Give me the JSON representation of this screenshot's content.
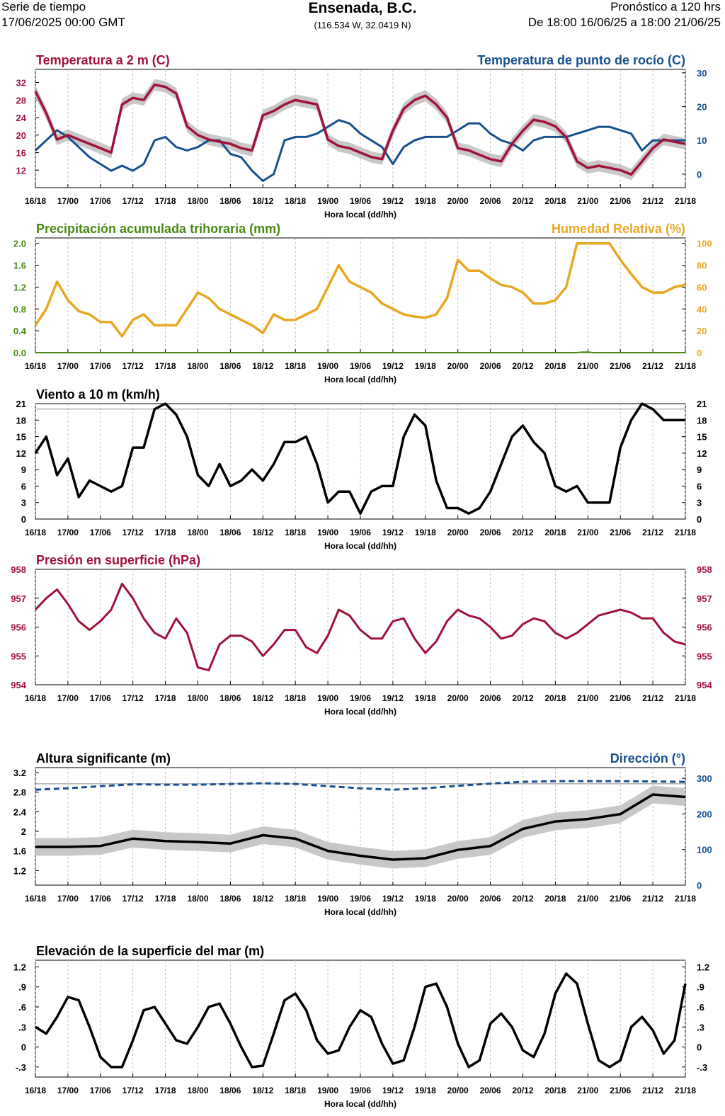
{
  "header": {
    "left_line1": "Serie de tiempo",
    "left_line2": "17/06/2025 00:00 GMT",
    "center_title": "Ensenada, B.C.",
    "center_coords": "(116.534 W, 32.0419 N)",
    "right_line1": "Pronóstico a 120 hrs",
    "right_line2": "De 18:00 16/06/25 a 18:00 21/06/25"
  },
  "x_axis": {
    "label": "Hora local (dd/hh)",
    "ticks": [
      "16/18",
      "17/00",
      "17/06",
      "17/12",
      "17/18",
      "18/00",
      "18/06",
      "18/12",
      "18/18",
      "19/00",
      "19/06",
      "19/12",
      "19/18",
      "20/00",
      "20/06",
      "20/12",
      "20/18",
      "21/00",
      "21/06",
      "21/12",
      "21/18"
    ],
    "range_hours": [
      0,
      120
    ]
  },
  "colors": {
    "temp": "#a0123a",
    "dew": "#17508e",
    "precip": "#4a8a12",
    "rh": "#e8a822",
    "wind": "#000000",
    "pressure": "#a0123a",
    "wave_dir": "#17508e",
    "spread": "#c8c8c8",
    "yellow": "#f4f000",
    "orange": "#d98b12"
  },
  "chart_data": [
    {
      "id": "temp",
      "type": "line",
      "title_left": "Temperatura a 2 m (C)",
      "title_right": "Temperatura de punto de rocío (C)",
      "xlabel": "Hora local (dd/hh)",
      "ylim_left": [
        8,
        35
      ],
      "ylim_right": [
        -4,
        31
      ],
      "yticks_left": [
        12,
        16,
        20,
        24,
        28,
        32
      ],
      "yticks_right": [
        0,
        10,
        20,
        30
      ],
      "series": [
        {
          "name": "Temperatura a 2 m",
          "axis": "left",
          "color_key": "temp",
          "spread": 1.3,
          "x": [
            0,
            2,
            4,
            6,
            8,
            10,
            12,
            14,
            16,
            18,
            20,
            22,
            24,
            26,
            28,
            30,
            32,
            34,
            36,
            38,
            40,
            42,
            44,
            46,
            48,
            50,
            52,
            54,
            56,
            58,
            60,
            62,
            64,
            66,
            68,
            70,
            72,
            74,
            76,
            78,
            80,
            82,
            84,
            86,
            88,
            90,
            92,
            94,
            96,
            98,
            100,
            102,
            104,
            106,
            108,
            110,
            112,
            114,
            116,
            118,
            120
          ],
          "y": [
            30,
            25,
            19,
            20,
            19,
            18,
            17,
            16,
            27,
            28.5,
            28,
            31.5,
            31,
            29.5,
            22,
            20,
            19,
            18.5,
            18,
            17,
            16.5,
            24.5,
            25.5,
            27,
            28,
            27.5,
            27,
            19,
            17.5,
            17,
            16,
            15,
            14.5,
            21,
            26,
            28,
            29,
            27,
            24,
            17,
            16.5,
            15.5,
            14.5,
            14,
            18,
            21,
            23.5,
            23,
            22,
            19.5,
            14,
            12.5,
            13,
            12.5,
            12,
            11,
            14,
            17,
            19,
            18.5,
            18
          ]
        },
        {
          "name": "Temperatura de punto de rocío",
          "axis": "right",
          "color_key": "dew",
          "x": [
            0,
            2,
            4,
            6,
            8,
            10,
            12,
            14,
            16,
            18,
            20,
            22,
            24,
            26,
            28,
            30,
            32,
            34,
            36,
            38,
            40,
            42,
            44,
            46,
            48,
            50,
            52,
            54,
            56,
            58,
            60,
            62,
            64,
            66,
            68,
            70,
            72,
            74,
            76,
            78,
            80,
            82,
            84,
            86,
            88,
            90,
            92,
            94,
            96,
            98,
            100,
            102,
            104,
            106,
            108,
            110,
            112,
            114,
            116,
            118,
            120
          ],
          "y": [
            7,
            10,
            13,
            11,
            8,
            5,
            3,
            1,
            2.5,
            1,
            3,
            10,
            11,
            8,
            7,
            8,
            10,
            10,
            6,
            5,
            1,
            -2,
            0,
            10,
            11,
            11,
            12,
            14,
            16,
            15,
            12,
            10,
            8,
            3,
            8,
            10,
            11,
            11,
            11,
            13,
            15,
            15,
            12,
            10,
            9,
            7,
            10,
            11,
            11,
            11,
            12,
            13,
            14,
            14,
            13,
            12,
            7,
            10,
            10,
            10,
            10
          ]
        }
      ]
    },
    {
      "id": "precip",
      "type": "line",
      "title_left": "Precipitación acumulada trihoraria (mm)",
      "title_right": "Humedad Relativa (%)",
      "xlabel": "Hora local (dd/hh)",
      "ylim_left": [
        0,
        2.1
      ],
      "ylim_right": [
        0,
        105
      ],
      "yticks_left": [
        "0.0",
        "0.4",
        "0.8",
        "1.2",
        "1.6",
        "2.0"
      ],
      "yticks_right": [
        0,
        20,
        40,
        60,
        80,
        100
      ],
      "series": [
        {
          "name": "Precipitación acumulada trihoraria",
          "axis": "left",
          "color_key": "precip",
          "x": [
            0,
            100,
            101,
            102,
            103,
            120
          ],
          "y": [
            0,
            0,
            0.01,
            0.01,
            0,
            0
          ]
        },
        {
          "name": "Humedad Relativa",
          "axis": "right",
          "color_key": "rh",
          "x": [
            0,
            2,
            4,
            6,
            8,
            10,
            12,
            14,
            16,
            18,
            20,
            22,
            24,
            26,
            28,
            30,
            32,
            34,
            36,
            38,
            40,
            42,
            44,
            46,
            48,
            50,
            52,
            54,
            56,
            58,
            60,
            62,
            64,
            66,
            68,
            70,
            72,
            74,
            76,
            78,
            80,
            82,
            84,
            86,
            88,
            90,
            92,
            94,
            96,
            98,
            100,
            102,
            104,
            106,
            108,
            110,
            112,
            114,
            116,
            118,
            120
          ],
          "y": [
            25,
            40,
            65,
            48,
            38,
            35,
            28,
            28,
            15,
            30,
            35,
            25,
            25,
            25,
            40,
            55,
            50,
            40,
            35,
            30,
            25,
            18,
            35,
            30,
            30,
            35,
            40,
            60,
            80,
            65,
            60,
            55,
            45,
            40,
            35,
            33,
            32,
            35,
            50,
            85,
            75,
            75,
            68,
            62,
            60,
            55,
            45,
            45,
            48,
            60,
            100,
            100,
            100,
            100,
            85,
            72,
            60,
            55,
            55,
            60,
            62
          ]
        }
      ]
    },
    {
      "id": "wind",
      "type": "line",
      "title_left": "Viento a 10 m (km/h)",
      "xlabel": "Hora local (dd/hh)",
      "ylim": [
        0,
        21
      ],
      "yticks": [
        0,
        3,
        6,
        9,
        12,
        15,
        18,
        21
      ],
      "threshold": 20,
      "series": [
        {
          "name": "Viento a 10 m",
          "color_key": "wind",
          "x": [
            0,
            2,
            4,
            6,
            8,
            10,
            12,
            14,
            16,
            18,
            20,
            22,
            24,
            26,
            28,
            30,
            32,
            34,
            36,
            38,
            40,
            42,
            44,
            46,
            48,
            50,
            52,
            54,
            56,
            58,
            60,
            62,
            64,
            66,
            68,
            70,
            72,
            74,
            76,
            78,
            80,
            82,
            84,
            86,
            88,
            90,
            92,
            94,
            96,
            98,
            100,
            102,
            104,
            106,
            108,
            110,
            112,
            114,
            116,
            118,
            120
          ],
          "y": [
            12,
            15,
            8,
            11,
            4,
            7,
            6,
            5,
            6,
            13,
            13,
            20,
            21,
            19,
            15,
            8,
            6,
            10,
            6,
            7,
            9,
            7,
            10,
            14,
            14,
            15,
            10,
            3,
            5,
            5,
            1,
            5,
            6,
            6,
            15,
            19,
            17,
            7,
            2,
            2,
            1,
            2,
            5,
            10,
            15,
            17,
            14,
            12,
            6,
            5,
            6,
            3,
            3,
            3,
            13,
            18,
            21,
            20,
            18,
            18,
            18
          ]
        }
      ]
    },
    {
      "id": "pressure",
      "type": "line",
      "title_left": "Presión en superficie (hPa)",
      "xlabel": "Hora local (dd/hh)",
      "ylim": [
        954,
        958
      ],
      "yticks": [
        954,
        955,
        956,
        957,
        958
      ],
      "series": [
        {
          "name": "Presión en superficie",
          "color_key": "pressure",
          "x": [
            0,
            2,
            4,
            6,
            8,
            10,
            12,
            14,
            16,
            18,
            20,
            22,
            24,
            26,
            28,
            30,
            32,
            34,
            36,
            38,
            40,
            42,
            44,
            46,
            48,
            50,
            52,
            54,
            56,
            58,
            60,
            62,
            64,
            66,
            68,
            70,
            72,
            74,
            76,
            78,
            80,
            82,
            84,
            86,
            88,
            90,
            92,
            94,
            96,
            98,
            100,
            102,
            104,
            106,
            108,
            110,
            112,
            114,
            116,
            118,
            120
          ],
          "y": [
            956.6,
            957,
            957.3,
            956.8,
            956.2,
            955.9,
            956.2,
            956.6,
            957.5,
            957,
            956.3,
            955.8,
            955.6,
            956.3,
            955.8,
            954.6,
            954.5,
            955.4,
            955.7,
            955.7,
            955.5,
            955,
            955.4,
            955.9,
            955.9,
            955.3,
            955.1,
            955.7,
            956.6,
            956.4,
            955.9,
            955.6,
            955.6,
            956.2,
            956.3,
            955.6,
            955.1,
            955.5,
            956.2,
            956.6,
            956.4,
            956.3,
            956,
            955.6,
            955.7,
            956.1,
            956.3,
            956.2,
            955.8,
            955.6,
            955.8,
            956.1,
            956.4,
            956.5,
            956.6,
            956.5,
            956.3,
            956.3,
            955.8,
            955.5,
            955.4
          ]
        }
      ]
    },
    {
      "id": "waves",
      "type": "line",
      "title_left": "Altura significante (m)",
      "title_right": "Dirección (°)",
      "xlabel": "Hora local (dd/hh)",
      "ylim_left": [
        0.9,
        3.3
      ],
      "ylim_right": [
        0,
        330
      ],
      "yticks_left": [
        "1.2",
        "1.6",
        "2",
        "2.4",
        "2.8",
        "3.2"
      ],
      "yticks_right": [
        0,
        100,
        200,
        300
      ],
      "threshold": 2.97,
      "series": [
        {
          "name": "Altura significante",
          "axis": "left",
          "color_key": "wind",
          "spread": 0.18,
          "x": [
            0,
            6,
            12,
            18,
            24,
            30,
            36,
            42,
            48,
            54,
            60,
            66,
            72,
            78,
            84,
            90,
            96,
            102,
            108,
            114,
            120
          ],
          "y": [
            1.68,
            1.68,
            1.7,
            1.85,
            1.8,
            1.78,
            1.75,
            1.92,
            1.85,
            1.6,
            1.5,
            1.42,
            1.45,
            1.62,
            1.7,
            2.05,
            2.2,
            2.25,
            2.35,
            2.75,
            2.7
          ]
        },
        {
          "name": "Dirección",
          "axis": "right",
          "color_key": "wave_dir",
          "dashed": true,
          "x": [
            0,
            6,
            12,
            18,
            24,
            30,
            36,
            42,
            48,
            54,
            60,
            66,
            72,
            78,
            84,
            90,
            96,
            102,
            108,
            114,
            120
          ],
          "y": [
            268,
            272,
            278,
            283,
            282,
            282,
            284,
            286,
            284,
            278,
            272,
            268,
            272,
            279,
            285,
            290,
            292,
            292,
            292,
            291,
            290
          ]
        }
      ]
    },
    {
      "id": "sealevel",
      "type": "line",
      "title_left": "Elevación de la superficie del mar (m)",
      "xlabel": "Hora local (dd/hh)",
      "ylim": [
        -0.45,
        1.3
      ],
      "yticks": [
        "-.3",
        "0",
        ".3",
        ".6",
        ".9",
        "1.2"
      ],
      "series": [
        {
          "name": "Elevación de la superficie del mar",
          "color_key": "wind",
          "x": [
            0,
            2,
            4,
            6,
            8,
            10,
            12,
            14,
            16,
            18,
            20,
            22,
            24,
            26,
            28,
            30,
            32,
            34,
            36,
            38,
            40,
            42,
            44,
            46,
            48,
            50,
            52,
            54,
            56,
            58,
            60,
            62,
            64,
            66,
            68,
            70,
            72,
            74,
            76,
            78,
            80,
            82,
            84,
            86,
            88,
            90,
            92,
            94,
            96,
            98,
            100,
            102,
            104,
            106,
            108,
            110,
            112,
            114,
            116,
            118,
            120
          ],
          "y": [
            0.3,
            0.2,
            0.45,
            0.75,
            0.7,
            0.3,
            -0.15,
            -0.3,
            -0.3,
            0.1,
            0.55,
            0.6,
            0.35,
            0.1,
            0.05,
            0.3,
            0.6,
            0.65,
            0.35,
            0,
            -0.3,
            -0.28,
            0.2,
            0.7,
            0.8,
            0.55,
            0.1,
            -0.1,
            -0.05,
            0.3,
            0.55,
            0.45,
            0.05,
            -0.25,
            -0.2,
            0.3,
            0.9,
            0.95,
            0.6,
            0.05,
            -0.3,
            -0.2,
            0.35,
            0.5,
            0.3,
            -0.05,
            -0.15,
            0.2,
            0.8,
            1.1,
            0.95,
            0.35,
            -0.2,
            -0.3,
            -0.2,
            0.3,
            0.45,
            0.25,
            -0.1,
            0.1,
            0.95
          ]
        }
      ]
    }
  ]
}
